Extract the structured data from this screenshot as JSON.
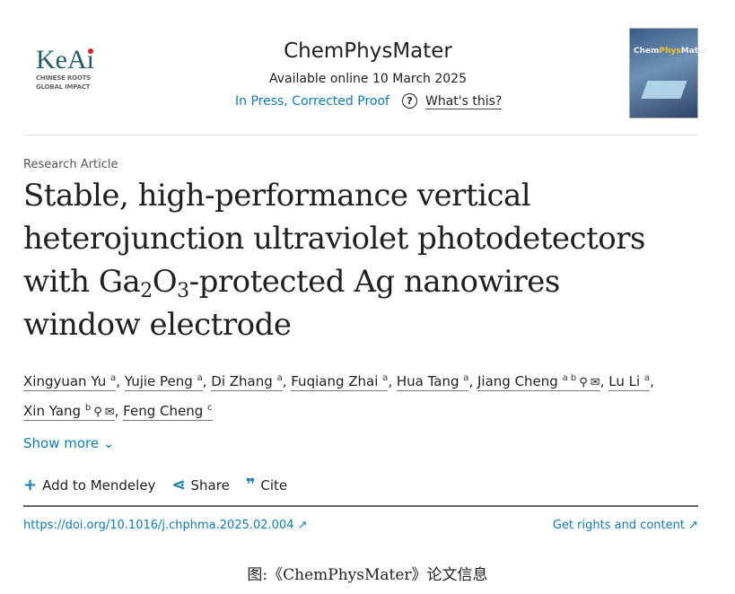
{
  "header": {
    "logo_text": "KeAi",
    "logo_tagline_1": "CHINESE ROOTS",
    "logo_tagline_2": "GLOBAL IMPACT",
    "journal": "ChemPhysMater",
    "available": "Available online 10 March 2025",
    "status": "In Press, Corrected Proof",
    "whats_this": "What's this?",
    "cover_title_a": "Chem",
    "cover_title_b": "Phys",
    "cover_title_c": "Mater"
  },
  "article": {
    "type": "Research Article",
    "title_1": "Stable, high-performance vertical",
    "title_2": "heterojunction ultraviolet photodetectors",
    "title_3a": "with Ga",
    "title_3b": "2",
    "title_3c": "O",
    "title_3d": "3",
    "title_3e": "-protected Ag nanowires",
    "title_4": "window electrode"
  },
  "authors": [
    {
      "name": "Xingyuan Yu",
      "sup": "a"
    },
    {
      "name": "Yujie Peng",
      "sup": "a"
    },
    {
      "name": "Di Zhang",
      "sup": "a"
    },
    {
      "name": "Fuqiang Zhai",
      "sup": "a"
    },
    {
      "name": "Hua Tang",
      "sup": "a"
    },
    {
      "name": "Jiang Cheng",
      "sup": "a b"
    },
    {
      "name": "Lu Li",
      "sup": "a"
    },
    {
      "name": "Xin Yang",
      "sup": "b"
    },
    {
      "name": "Feng Cheng",
      "sup": "c"
    }
  ],
  "show_more": "Show more",
  "actions": {
    "mendeley": "Add to Mendeley",
    "share": "Share",
    "cite": "Cite"
  },
  "doi": "https://doi.org/10.1016/j.chphma.2025.02.004 ↗",
  "rights": "Get rights and content ↗",
  "caption": "图:《ChemPhysMater》论文信息",
  "colors": {
    "link": "#0c7dbb"
  }
}
